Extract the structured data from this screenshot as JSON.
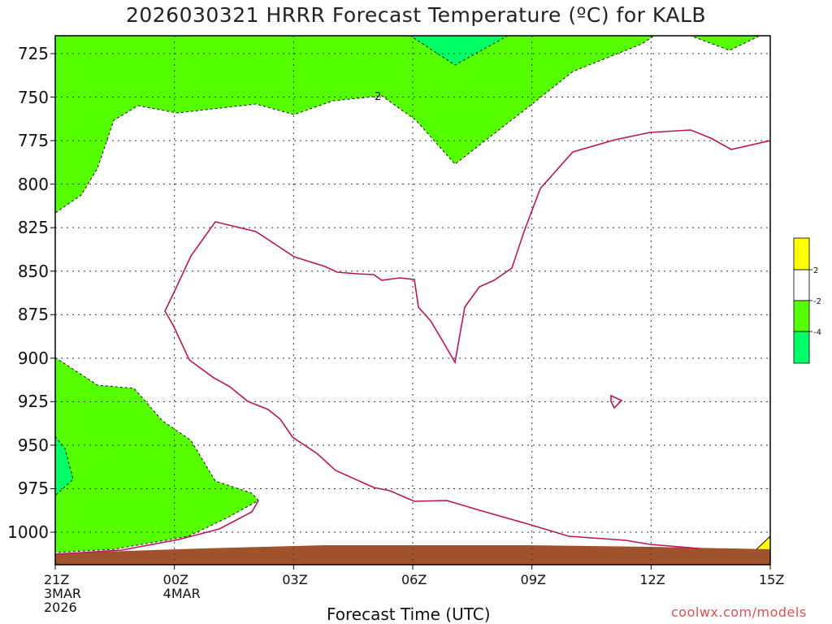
{
  "chart_data": {
    "type": "heatmap",
    "title": "2026030321 HRRR Forecast Temperature (ºC) for KALB",
    "xlabel": "Forecast Time (UTC)",
    "ylabel": "",
    "x_ticks": [
      {
        "hour": 0,
        "lines": [
          "21Z",
          "3MAR",
          "2026"
        ]
      },
      {
        "hour": 3,
        "lines": [
          "00Z",
          "4MAR"
        ]
      },
      {
        "hour": 6,
        "lines": [
          "03Z"
        ]
      },
      {
        "hour": 9,
        "lines": [
          "06Z"
        ]
      },
      {
        "hour": 12,
        "lines": [
          "09Z"
        ]
      },
      {
        "hour": 15,
        "lines": [
          "12Z"
        ]
      },
      {
        "hour": 18,
        "lines": [
          "15Z"
        ]
      }
    ],
    "y_ticks": [
      725,
      750,
      775,
      800,
      825,
      850,
      875,
      900,
      925,
      950,
      975,
      1000
    ],
    "y_range_hPa": [
      1018,
      715
    ],
    "x_range_hours": [
      0,
      18
    ],
    "contour_label": "2",
    "colorbar": {
      "labels": [
        "2",
        "-2",
        "-4"
      ],
      "colors": [
        "#ffff00",
        "#ffffff",
        "#55ff00",
        "#00ff66"
      ]
    },
    "fill_colors": {
      "cold_green": "#55ff00",
      "colder_green": "#00ff66",
      "warm_yellow": "#ffff00",
      "ground": "#a0522d",
      "contour": "#c0115a"
    }
  },
  "credit": "coolwx.com/models"
}
